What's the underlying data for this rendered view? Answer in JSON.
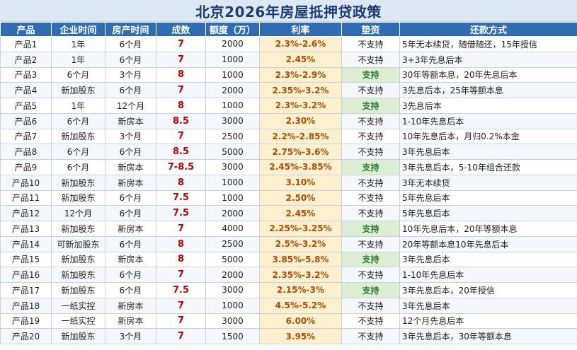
{
  "title": "北京2026年房屋抵押贷政策",
  "headers": [
    "产品",
    "企业时间",
    "房产时间",
    "成数",
    "额度（万）",
    "利率",
    "垫资",
    "还款方式"
  ],
  "rows": [
    [
      "产品1",
      "1年",
      "6个月",
      "7",
      "2000",
      "2.3%-2.6%",
      "不支持",
      "5年无本续贷，随借随还，15年授信"
    ],
    [
      "产品2",
      "1年",
      "6个月",
      "7",
      "1000",
      "2.45%",
      "不支持",
      "3+3年先息后本"
    ],
    [
      "产品3",
      "6个月",
      "3个月",
      "8",
      "1000",
      "2.3%-2.9%",
      "支持",
      "30年等额本息，20年先息后本"
    ],
    [
      "产品4",
      "新加股东",
      "6个月",
      "7",
      "2000",
      "2.35%-3.2%",
      "不支持",
      "3先息后本，25年等额本息"
    ],
    [
      "产品5",
      "1年",
      "12个月",
      "8",
      "1000",
      "2.3%-3.2%",
      "支持",
      "3先息后本"
    ],
    [
      "产品6",
      "6个月",
      "新房本",
      "8.5",
      "3000",
      "2.30%",
      "不支持",
      "1-10年先息后本"
    ],
    [
      "产品7",
      "新加股东",
      "3个月",
      "7",
      "2500",
      "2.2%-2.85%",
      "不支持",
      "10年先息后本，月归0.2%本金"
    ],
    [
      "产品8",
      "6个月",
      "6个月",
      "8.5",
      "5000",
      "2.75%-3.6%",
      "不支持",
      "3年先息后本"
    ],
    [
      "产品9",
      "6个月",
      "新房本",
      "7-8.5",
      "3000",
      "2.45%-3.85%",
      "支持",
      "3年先息后本，5-10年组合还款"
    ],
    [
      "产品10",
      "新加股东",
      "新房本",
      "8",
      "1000",
      "3.10%",
      "不支持",
      "3年无本续贷"
    ],
    [
      "产品11",
      "新加股东",
      "6个月",
      "7.5",
      "1000",
      "2.50%",
      "不支持",
      "5年先息后本"
    ],
    [
      "产品12",
      "12个月",
      "6个月",
      "7.5",
      "2000",
      "2.45%",
      "不支持",
      "5年先息后本"
    ],
    [
      "产品13",
      "新加股东",
      "新房本",
      "7",
      "4000",
      "2.25%-3.25%",
      "支持",
      "10年先息后本，20年等额本息"
    ],
    [
      "产品14",
      "可新加股东",
      "6个月",
      "8",
      "2500",
      "2.5%-3.2%",
      "不支持",
      "20年等额本息10年先息后本"
    ],
    [
      "产品15",
      "新加股东",
      "新房本",
      "8",
      "5000",
      "3.85%-5.8%",
      "支持",
      "3年先息后本"
    ],
    [
      "产品16",
      "新加股东",
      "6个月",
      "7",
      "2000",
      "2.35%-3.2%",
      "不支持",
      "1-10年先息后本"
    ],
    [
      "产品17",
      "新加股东",
      "6个月",
      "7.5",
      "3000",
      "2.15%-3%",
      "支持",
      "3年先息后本，20年授信"
    ],
    [
      "产品18",
      "一纸实控",
      "新房本",
      "7",
      "1000",
      "4.5%-5.2%",
      "不支持",
      "3年先息后本"
    ],
    [
      "产品19",
      "一纸实控",
      "新房本",
      "7",
      "3000",
      "6.00%",
      "不支持",
      "12个月先息后本"
    ],
    [
      "产品20",
      "新加股东",
      "3个月",
      "7",
      "1500",
      "3.95%",
      "不支持",
      "3年先息后本，30年等额本息"
    ]
  ],
  "colors": {
    "header_bg": "#2e6db4",
    "title_bg": "#dde8f5",
    "rate_text": "#c00000",
    "interest_bg": "#fdf0cf",
    "advance_yes_bg": "#dbeed3"
  }
}
